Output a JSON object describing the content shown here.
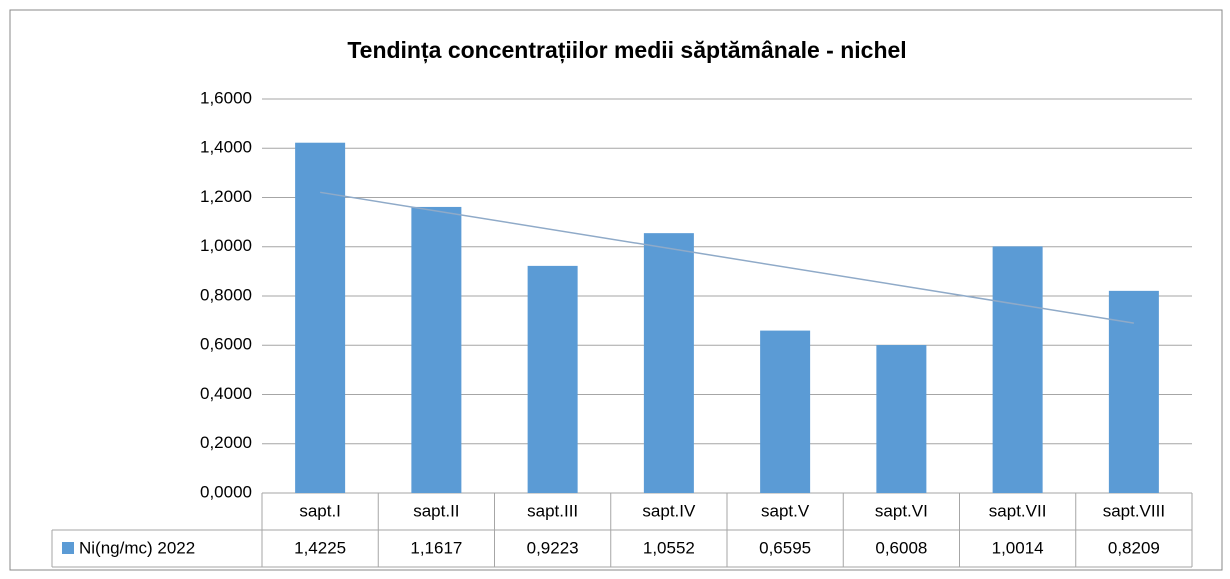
{
  "chart_data": {
    "type": "bar",
    "title": "Tendința concentrațiilor medii săptămânale - nichel",
    "categories": [
      "sapt.I",
      "sapt.II",
      "sapt.III",
      "sapt.IV",
      "sapt.V",
      "sapt.VI",
      "sapt.VII",
      "sapt.VIII"
    ],
    "series": [
      {
        "name": "Ni(ng/mc) 2022",
        "color": "#5b9bd5",
        "values": [
          1.4225,
          1.1617,
          0.9223,
          1.0552,
          0.6595,
          0.6008,
          1.0014,
          0.8209
        ],
        "value_labels": [
          "1,4225",
          "1,1617",
          "0,9223",
          "1,0552",
          "0,6595",
          "0,6008",
          "1,0014",
          "0,8209"
        ]
      }
    ],
    "ylim": [
      0,
      1.6
    ],
    "yticks": [
      {
        "value": 0,
        "label": "0,0000"
      },
      {
        "value": 0.2,
        "label": "0,2000"
      },
      {
        "value": 0.4,
        "label": "0,4000"
      },
      {
        "value": 0.6,
        "label": "0,6000"
      },
      {
        "value": 0.8,
        "label": "0,8000"
      },
      {
        "value": 1.0,
        "label": "1,0000"
      },
      {
        "value": 1.2,
        "label": "1,2000"
      },
      {
        "value": 1.4,
        "label": "1,4000"
      },
      {
        "value": 1.6,
        "label": "1,6000"
      }
    ],
    "grid": true,
    "trendline": "linear",
    "trendline_color": "#8faac8",
    "data_table": true
  }
}
